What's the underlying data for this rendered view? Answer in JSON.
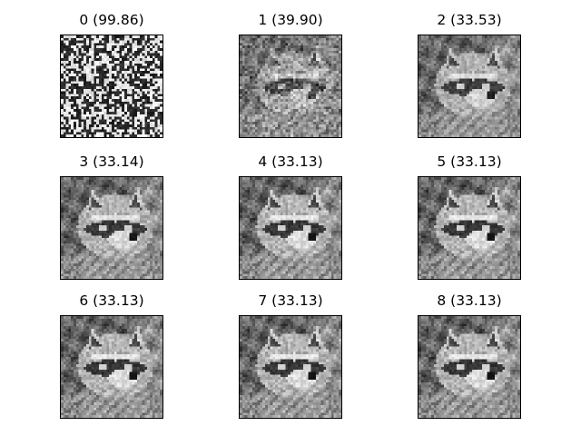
{
  "figure": {
    "panels": [
      {
        "title": "0 (99.86)",
        "kind": "noise",
        "noise_level": 1.0
      },
      {
        "title": "1 (39.90)",
        "kind": "image",
        "noise_level": 0.35
      },
      {
        "title": "2 (33.53)",
        "kind": "image",
        "noise_level": 0.1
      },
      {
        "title": "3 (33.14)",
        "kind": "image",
        "noise_level": 0.03
      },
      {
        "title": "4 (33.13)",
        "kind": "image",
        "noise_level": 0.0
      },
      {
        "title": "5 (33.13)",
        "kind": "image",
        "noise_level": 0.0
      },
      {
        "title": "6 (33.13)",
        "kind": "image",
        "noise_level": 0.0
      },
      {
        "title": "7 (33.13)",
        "kind": "image",
        "noise_level": 0.0
      },
      {
        "title": "8 (33.13)",
        "kind": "image",
        "noise_level": 0.0
      }
    ]
  }
}
